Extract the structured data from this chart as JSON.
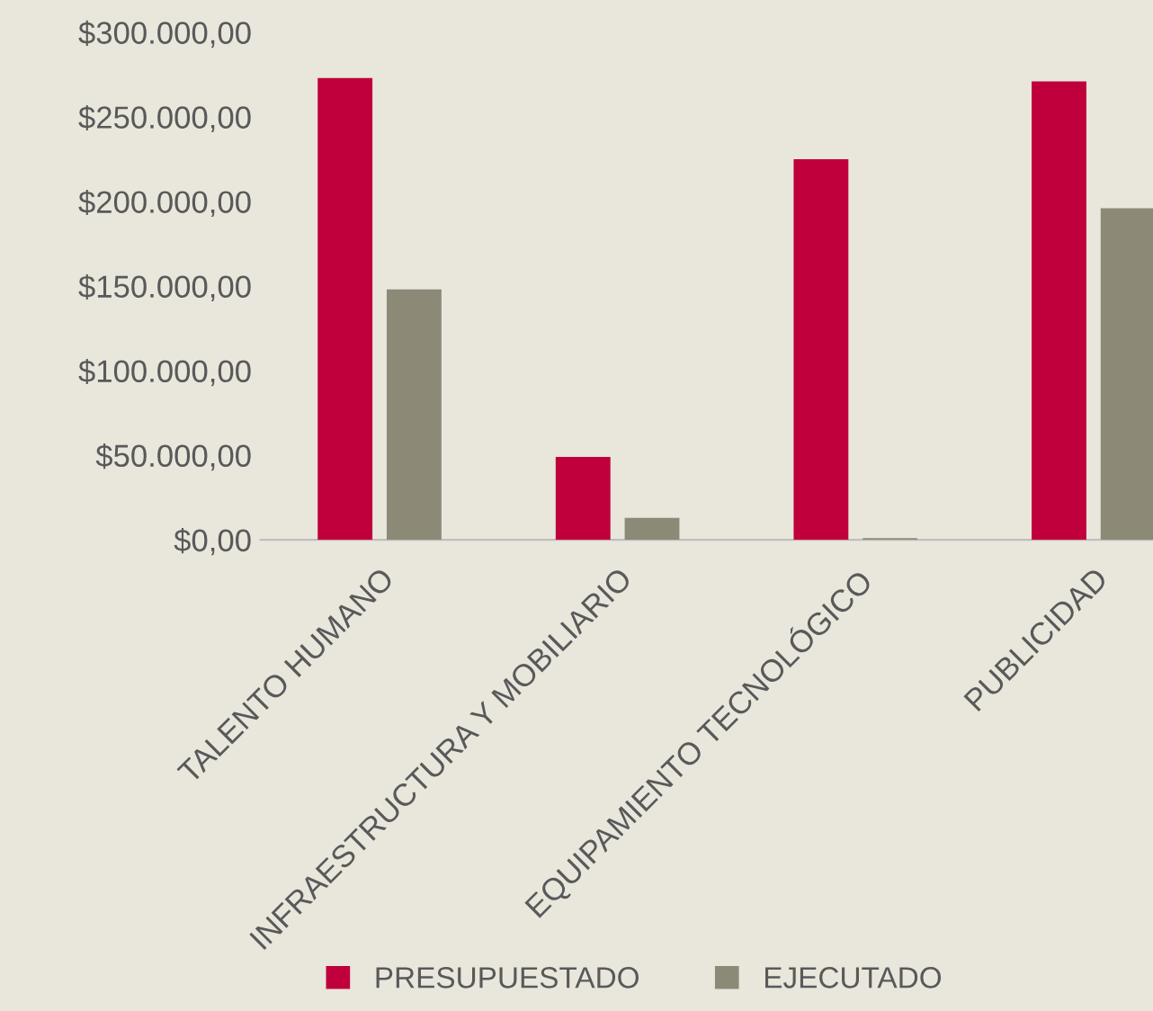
{
  "chart_data": {
    "type": "bar",
    "categories": [
      "TALENTO HUMANO",
      "INFRAESTRUCTURA Y MOBILIARIO",
      "EQUIPAMIENTO TECNOLÓGICO",
      "PUBLICIDAD"
    ],
    "series": [
      {
        "name": "PRESUPUESTADO",
        "color": "#c0003c",
        "values": [
          273000,
          49000,
          225000,
          271000
        ]
      },
      {
        "name": "EJECUTADO",
        "color": "#8c8a77",
        "values": [
          148000,
          13000,
          1000,
          196000
        ]
      }
    ],
    "ylim": [
      0,
      300000
    ],
    "yticks": [
      {
        "value": 0,
        "label": "$0,00"
      },
      {
        "value": 50000,
        "label": "$50.000,00"
      },
      {
        "value": 100000,
        "label": "$100.000,00"
      },
      {
        "value": 150000,
        "label": "$150.000,00"
      },
      {
        "value": 200000,
        "label": "$200.000,00"
      },
      {
        "value": 250000,
        "label": "$250.000,00"
      },
      {
        "value": 300000,
        "label": "$300.000,00"
      }
    ],
    "grid": false,
    "legend": "bottom"
  }
}
